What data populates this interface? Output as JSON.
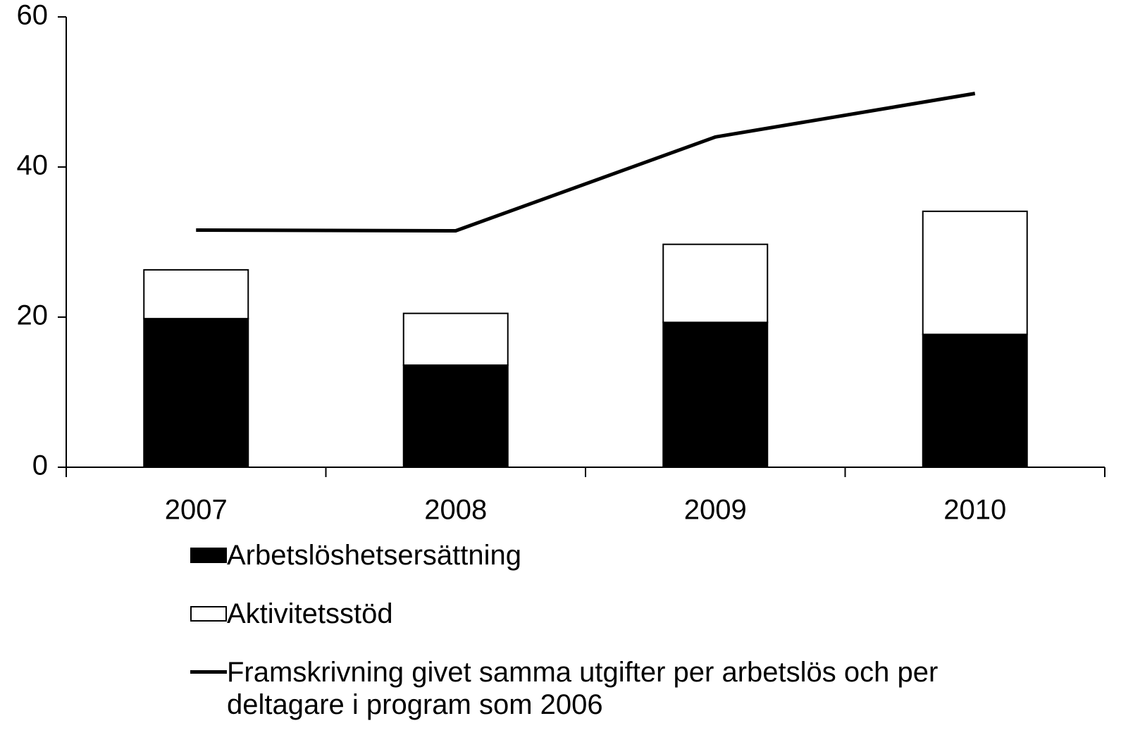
{
  "chart_data": {
    "type": "bar",
    "stacked": true,
    "categories": [
      "2007",
      "2008",
      "2009",
      "2010"
    ],
    "series": [
      {
        "name": "Arbetslöshetsersättning",
        "color": "#000000",
        "values": [
          19.8,
          13.6,
          19.3,
          17.7
        ]
      },
      {
        "name": "Aktivitetsstöd",
        "color": "#ffffff",
        "values": [
          6.5,
          6.9,
          10.4,
          16.4
        ]
      },
      {
        "name": "Framskrivning givet samma utgifter per arbetslös och per deltagare i program som 2006",
        "color": "#000000",
        "type": "line",
        "values": [
          31.6,
          31.5,
          44.0,
          49.8
        ]
      }
    ],
    "ylim": [
      0,
      60
    ],
    "yticks": [
      0,
      20,
      40,
      60
    ],
    "grid": false,
    "legend": "bottom"
  }
}
